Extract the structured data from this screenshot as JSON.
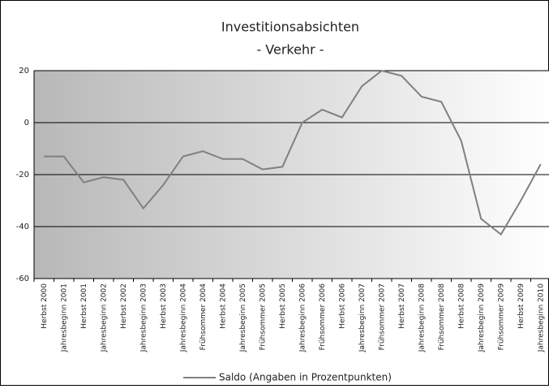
{
  "chart_data": {
    "type": "line",
    "title": "Investitionsabsichten",
    "subtitle": "- Verkehr -",
    "categories": [
      "Herbst 2000",
      "Jahresbeginn 2001",
      "Herbst 2001",
      "Jahresbeginn 2002",
      "Herbst 2002",
      "Jahresbeginn 2003",
      "Herbst 2003",
      "Jahresbeginn 2004",
      "Frühsommer 2004",
      "Herbst 2004",
      "Jahresbeginn 2005",
      "Frühsommer 2005",
      "Herbst 2005",
      "Jahresbeginn 2006",
      "Frühsommer 2006",
      "Herbst 2006",
      "Jahresbeginn 2007",
      "Frühsommer 2007",
      "Herbst 2007",
      "Jahresbeginn 2008",
      "Frühsommer 2008",
      "Herbst 2008",
      "Jahresbeginn 2009",
      "Frühsommer 2009",
      "Herbst 2009",
      "Jahresbeginn 2010"
    ],
    "series": [
      {
        "name": "Saldo (Angaben in Prozentpunkten)",
        "color": "#808080",
        "values": [
          -13,
          -13,
          -23,
          -21,
          -22,
          -33,
          -24,
          -13,
          -11,
          -14,
          -14,
          -18,
          -17,
          0,
          5,
          2,
          14,
          20,
          18,
          10,
          8,
          -7,
          -37,
          -43,
          -30,
          -16
        ]
      }
    ],
    "ylim": [
      -60,
      20
    ],
    "yticks": [
      -60,
      -40,
      -20,
      0,
      20
    ],
    "grid": true,
    "legend": "bottom"
  }
}
